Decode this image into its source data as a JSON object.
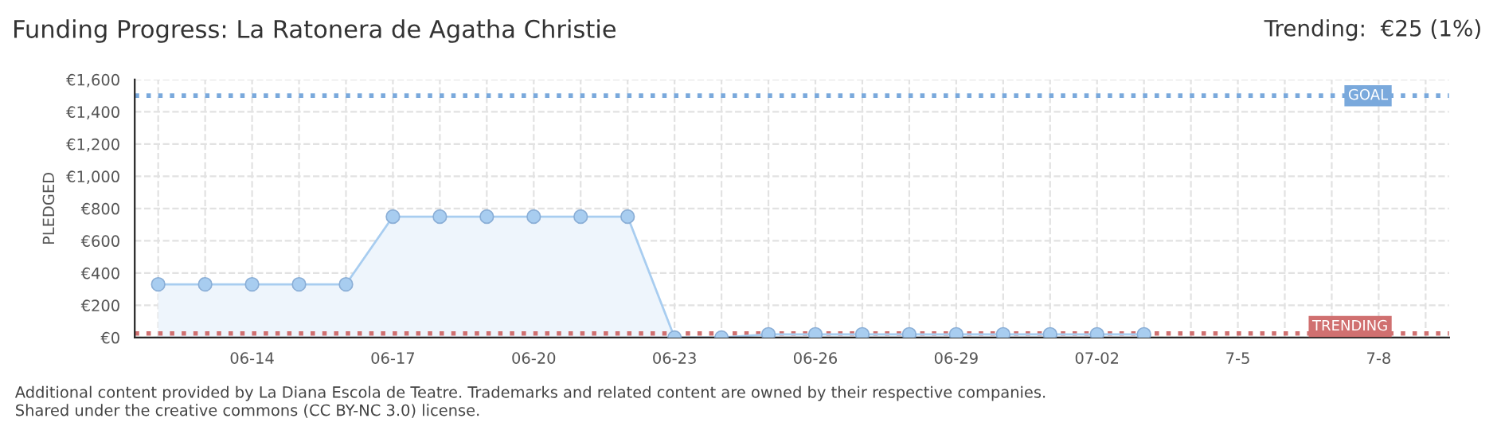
{
  "chart_data": {
    "type": "area",
    "title": "Funding Progress: La Ratonera de Agatha Christie",
    "subtitle": "Trending:  €25 (1%)",
    "ylabel": "PLEDGED",
    "categories": [
      null,
      null,
      "06-14",
      null,
      null,
      "06-17",
      null,
      null,
      "06-20",
      null,
      null,
      "06-23",
      null,
      null,
      "06-26",
      null,
      null,
      "06-29",
      null,
      null,
      "07-02",
      null,
      null,
      "7-5",
      null,
      null,
      "7-8",
      null
    ],
    "series": [
      {
        "color": "#a8cdf0",
        "values": [
          330,
          330,
          330,
          330,
          330,
          750,
          750,
          750,
          750,
          750,
          750,
          0,
          0,
          20,
          20,
          20,
          20,
          20,
          20,
          20,
          20,
          20,
          null,
          null,
          null,
          null,
          null,
          null
        ]
      }
    ],
    "ylim": [
      0,
      1600
    ],
    "yticks": [
      {
        "value": 0,
        "label": "€0"
      },
      {
        "value": 200,
        "label": "€200"
      },
      {
        "value": 400,
        "label": "€400"
      },
      {
        "value": 600,
        "label": "€600"
      },
      {
        "value": 800,
        "label": "€800"
      },
      {
        "value": 1000,
        "label": "€1,000"
      },
      {
        "value": 1200,
        "label": "€1,200"
      },
      {
        "value": 1400,
        "label": "€1,400"
      },
      {
        "value": 1600,
        "label": "€1,600"
      }
    ],
    "ref_lines": [
      {
        "axis": "y",
        "value": 1500,
        "label": "GOAL",
        "color": "#7aa9dc",
        "line_style": "dotted"
      },
      {
        "axis": "y",
        "value": 25,
        "label": "TRENDING",
        "color": "#d07070",
        "line_style": "dotted"
      }
    ],
    "grid": true,
    "marker": "circle",
    "annotations": [
      "Additional content provided by La Diana Escola de Teatre. Trademarks and related content are owned by their respective companies.",
      "Shared under the creative commons (CC BY-NC 3.0) license."
    ]
  }
}
